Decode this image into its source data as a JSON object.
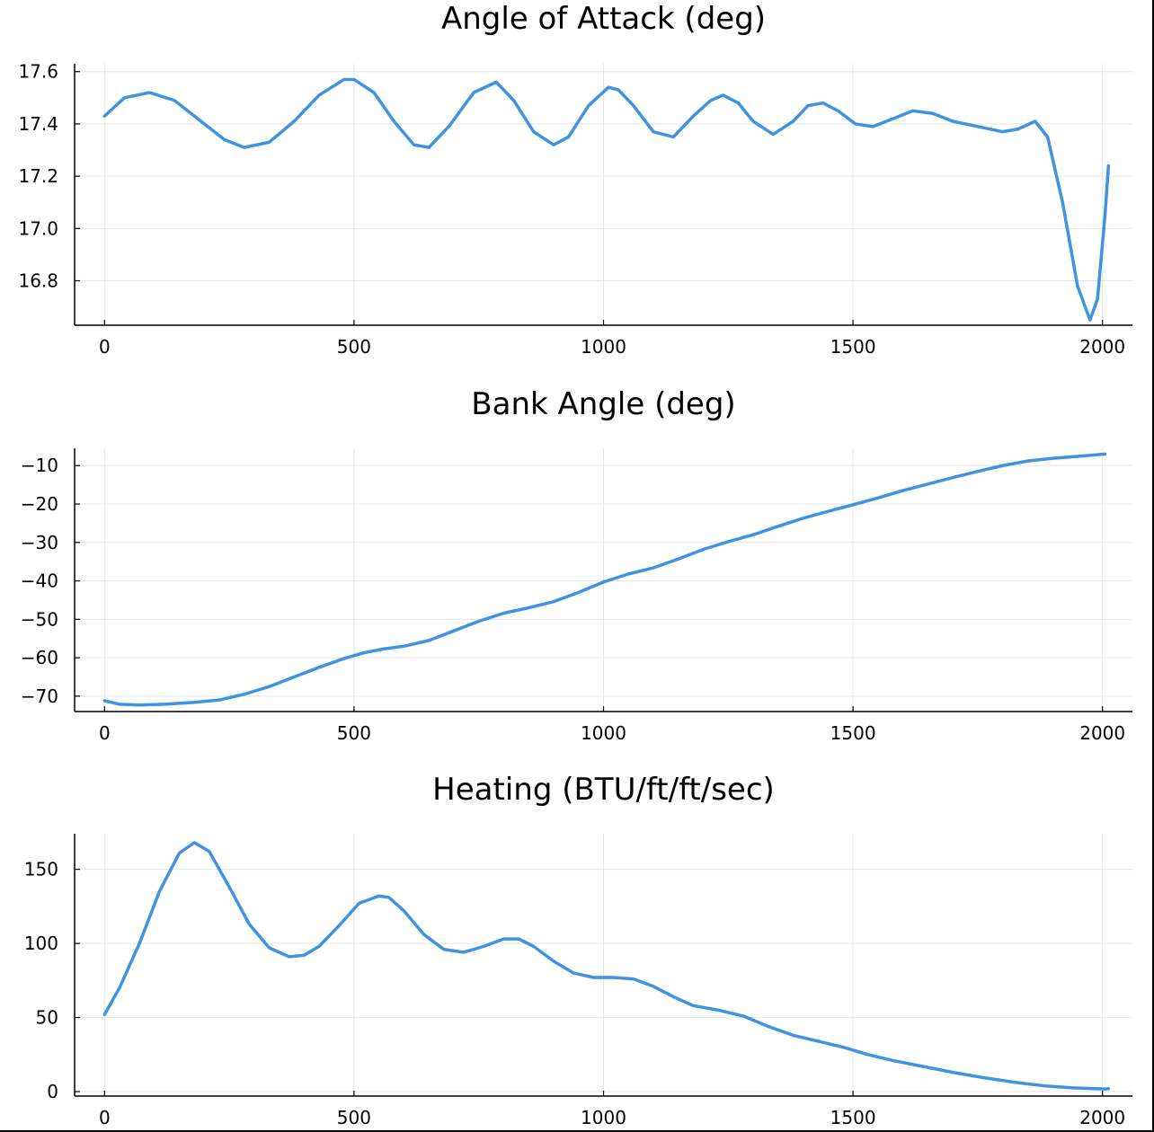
{
  "series_color": "#3f93e1",
  "chart_data": [
    {
      "type": "line",
      "title": "Angle of Attack (deg)",
      "xlim": [
        -60,
        2060
      ],
      "ylim": [
        16.63,
        17.63
      ],
      "xticks": [
        0,
        500,
        1000,
        1500,
        2000
      ],
      "xtick_labels": [
        "0",
        "500",
        "1000",
        "1500",
        "2000"
      ],
      "yticks": [
        16.8,
        17.0,
        17.2,
        17.4,
        17.6
      ],
      "ytick_labels": [
        "16.8",
        "17.0",
        "17.2",
        "17.4",
        "17.6"
      ],
      "grid": true,
      "series": [
        {
          "x": [
            0,
            40,
            90,
            140,
            200,
            240,
            280,
            330,
            380,
            430,
            480,
            500,
            540,
            580,
            620,
            650,
            690,
            740,
            785,
            820,
            860,
            900,
            930,
            970,
            1010,
            1030,
            1060,
            1100,
            1140,
            1180,
            1215,
            1240,
            1270,
            1300,
            1340,
            1380,
            1410,
            1440,
            1470,
            1505,
            1540,
            1580,
            1620,
            1660,
            1700,
            1750,
            1800,
            1830,
            1865,
            1890,
            1920,
            1950,
            1975,
            1990,
            2005,
            2012
          ],
          "y": [
            17.43,
            17.5,
            17.52,
            17.49,
            17.4,
            17.34,
            17.31,
            17.33,
            17.41,
            17.51,
            17.57,
            17.57,
            17.52,
            17.41,
            17.32,
            17.31,
            17.39,
            17.52,
            17.56,
            17.49,
            17.37,
            17.32,
            17.35,
            17.47,
            17.54,
            17.53,
            17.47,
            17.37,
            17.35,
            17.43,
            17.49,
            17.51,
            17.48,
            17.41,
            17.36,
            17.41,
            17.47,
            17.48,
            17.45,
            17.4,
            17.39,
            17.42,
            17.45,
            17.44,
            17.41,
            17.39,
            17.37,
            17.38,
            17.41,
            17.35,
            17.1,
            16.78,
            16.65,
            16.73,
            17.05,
            17.24
          ]
        }
      ]
    },
    {
      "type": "line",
      "title": "Bank Angle (deg)",
      "xlim": [
        -60,
        2060
      ],
      "ylim": [
        -74,
        -5.5
      ],
      "xticks": [
        0,
        500,
        1000,
        1500,
        2000
      ],
      "xtick_labels": [
        "0",
        "500",
        "1000",
        "1500",
        "2000"
      ],
      "yticks": [
        -70,
        -60,
        -50,
        -40,
        -30,
        -20,
        -10
      ],
      "ytick_labels": [
        "−70",
        "−60",
        "−50",
        "−40",
        "−30",
        "−20",
        "−10"
      ],
      "grid": true,
      "series": [
        {
          "x": [
            0,
            30,
            70,
            120,
            180,
            230,
            280,
            330,
            380,
            430,
            480,
            520,
            560,
            600,
            650,
            700,
            750,
            800,
            850,
            900,
            950,
            1000,
            1050,
            1100,
            1150,
            1200,
            1250,
            1300,
            1350,
            1400,
            1450,
            1500,
            1550,
            1600,
            1650,
            1700,
            1750,
            1800,
            1850,
            1900,
            1950,
            2005
          ],
          "y": [
            -71.2,
            -72.1,
            -72.3,
            -72.1,
            -71.6,
            -71,
            -69.5,
            -67.5,
            -65,
            -62.5,
            -60.2,
            -58.7,
            -57.7,
            -57,
            -55.5,
            -53,
            -50.5,
            -48.4,
            -47,
            -45.4,
            -43,
            -40.3,
            -38.2,
            -36.6,
            -34.3,
            -31.8,
            -29.8,
            -28,
            -25.8,
            -23.7,
            -21.9,
            -20.2,
            -18.4,
            -16.5,
            -14.8,
            -13.1,
            -11.5,
            -10,
            -8.8,
            -8.1,
            -7.6,
            -7
          ]
        }
      ]
    },
    {
      "type": "line",
      "title": "Heating (BTU/ft/ft/sec)",
      "xlim": [
        -60,
        2060
      ],
      "ylim": [
        -3,
        174
      ],
      "xticks": [
        0,
        500,
        1000,
        1500,
        2000
      ],
      "xtick_labels": [
        "0",
        "500",
        "1000",
        "1500",
        "2000"
      ],
      "yticks": [
        0,
        50,
        100,
        150
      ],
      "ytick_labels": [
        "0",
        "50",
        "100",
        "150"
      ],
      "grid": true,
      "series": [
        {
          "x": [
            0,
            30,
            70,
            110,
            150,
            180,
            210,
            250,
            290,
            330,
            370,
            400,
            430,
            470,
            510,
            550,
            570,
            600,
            640,
            680,
            720,
            760,
            800,
            830,
            860,
            900,
            940,
            980,
            1020,
            1060,
            1100,
            1140,
            1180,
            1230,
            1280,
            1330,
            1380,
            1430,
            1480,
            1530,
            1580,
            1640,
            1700,
            1760,
            1820,
            1880,
            1940,
            2005,
            2012
          ],
          "y": [
            52,
            70,
            100,
            135,
            161,
            168,
            162,
            138,
            113,
            97,
            91,
            92,
            98,
            112,
            127,
            132,
            131,
            122,
            106,
            96,
            94,
            98,
            103,
            103,
            98,
            88,
            80,
            77,
            77,
            76,
            71,
            64,
            58,
            55,
            51,
            44,
            38,
            34,
            30,
            25,
            21,
            17,
            13,
            9.5,
            6.5,
            4,
            2.5,
            1.8,
            2
          ]
        }
      ]
    }
  ]
}
